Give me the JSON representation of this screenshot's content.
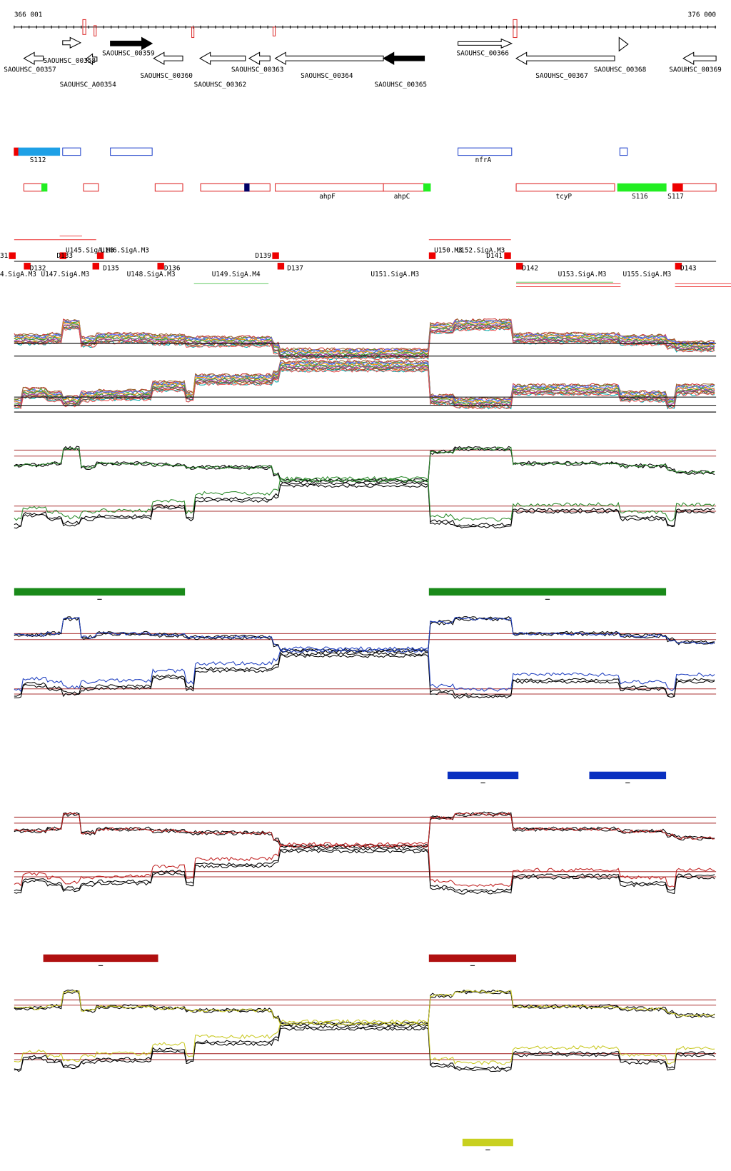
{
  "ruler": {
    "start": "366 001",
    "end": "376 000"
  },
  "genes": [
    "SAOUHSC_00357",
    "SAOUHSC_00358",
    "SAOUHSC_A00354",
    "SAOUHSC_00359",
    "SAOUHSC_00360",
    "SAOUHSC_00362",
    "SAOUHSC_00363",
    "SAOUHSC_00364",
    "SAOUHSC_00365",
    "SAOUHSC_00366",
    "SAOUHSC_00367",
    "SAOUHSC_00368",
    "SAOUHSC_00369"
  ],
  "features": [
    "S112",
    "nfrA",
    "ahpF",
    "ahpC",
    "tcyP",
    "S116",
    "S117"
  ],
  "promoters": [
    "31",
    "U145.SigA.M3",
    "U146.SigA.M3",
    "D133",
    "D139",
    "U150.M3",
    "U152.SigA.M3",
    "D141",
    "4.SigA.M3",
    "D132",
    "U147.SigA.M3",
    "D135",
    "U148.SigA.M3",
    "D136",
    "U149.SigA.M4",
    "D137",
    "U151.SigA.M3",
    "D142",
    "U153.SigA.M3",
    "U155.SigA.M3",
    "D143"
  ]
}
